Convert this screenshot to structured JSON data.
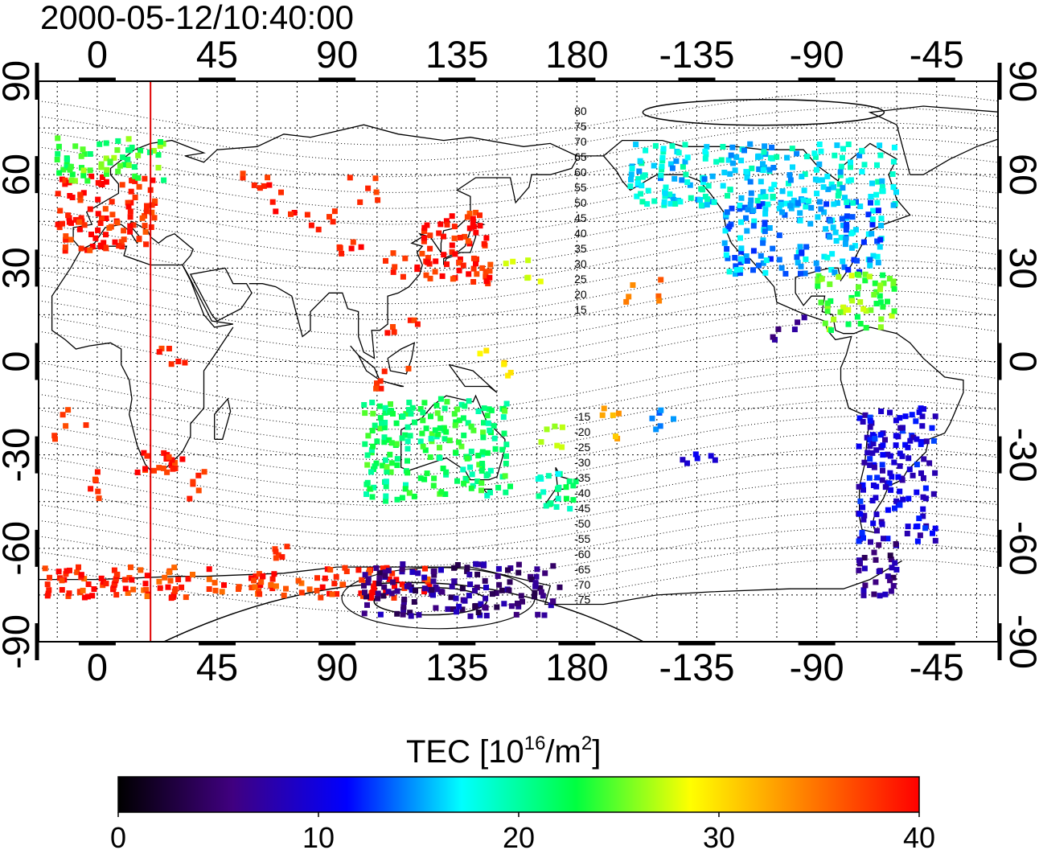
{
  "title": "2000-05-12/10:40:00",
  "colorbar": {
    "label_prefix": "TEC  [10",
    "label_exp1": "16",
    "label_mid": "/m",
    "label_exp2": "2",
    "label_suffix": "]",
    "ticks": [
      "0",
      "10",
      "20",
      "30",
      "40"
    ],
    "range": [
      0,
      40
    ],
    "colormap": "jet-like",
    "stops": [
      "#000000",
      "#400080",
      "#0000ff",
      "#00ffff",
      "#00ff40",
      "#ffff00",
      "#ff8000",
      "#ff0000"
    ]
  },
  "map": {
    "projection": "equirectangular",
    "lon_range": [
      -22,
      338
    ],
    "lat_range": [
      -90,
      90
    ],
    "lon_ticks": [
      0,
      45,
      90,
      135,
      180,
      225,
      270,
      315
    ],
    "lon_tick_labels": [
      "0",
      "45",
      "90",
      "135",
      "180",
      "-135",
      "-90",
      "-45"
    ],
    "lat_ticks": [
      90,
      60,
      30,
      0,
      -30,
      -60,
      -90
    ],
    "lat_tick_labels": [
      "90",
      "60",
      "30",
      "0",
      "-30",
      "-60",
      "-90"
    ],
    "grid": "dotted 15 deg",
    "terminator_lon": 20,
    "terminator_color": "#e00000",
    "mlat_labels": [
      "80",
      "75",
      "70",
      "65",
      "60",
      "55",
      "50",
      "45",
      "40",
      "35",
      "30",
      "25",
      "20",
      "15",
      "-15",
      "-20",
      "-25",
      "-30",
      "-35",
      "-40",
      "-45",
      "-50",
      "-55",
      "-60",
      "-65",
      "-70",
      "-75"
    ]
  },
  "chart_data": {
    "type": "heatmap",
    "title": "2000-05-12/10:40:00",
    "xlabel": "",
    "ylabel": "",
    "colorbar_label": "TEC  [10^16/m^2]",
    "zlim": [
      0,
      40
    ],
    "regions": [
      {
        "lon_min": -15,
        "lon_max": 22,
        "lat_min": 35,
        "lat_max": 60,
        "tec": 39
      },
      {
        "lon_min": -15,
        "lon_max": 25,
        "lat_min": 58,
        "lat_max": 72,
        "tec": 24
      },
      {
        "lon_min": 120,
        "lon_max": 148,
        "lat_min": 25,
        "lat_max": 48,
        "tec": 39
      },
      {
        "lon_min": 235,
        "lon_max": 295,
        "lat_min": 28,
        "lat_max": 52,
        "tec": 15
      },
      {
        "lon_min": 200,
        "lon_max": 300,
        "lat_min": 50,
        "lat_max": 70,
        "tec": 17
      },
      {
        "lon_min": 270,
        "lon_max": 300,
        "lat_min": 10,
        "lat_max": 28,
        "tec": 25
      },
      {
        "lon_min": 100,
        "lon_max": 155,
        "lat_min": -45,
        "lat_max": -12,
        "tec": 22
      },
      {
        "lon_min": 165,
        "lon_max": 180,
        "lat_min": -48,
        "lat_max": -34,
        "tec": 20
      },
      {
        "lon_min": 285,
        "lon_max": 315,
        "lat_min": -58,
        "lat_max": -15,
        "tec": 10
      },
      {
        "lon_min": 285,
        "lon_max": 300,
        "lat_min": -76,
        "lat_max": -58,
        "tec": 6
      },
      {
        "lon_min": 15,
        "lon_max": 32,
        "lat_min": -36,
        "lat_max": -28,
        "tec": 39
      },
      {
        "lon_min": -20,
        "lon_max": 125,
        "lat_min": -76,
        "lat_max": -66,
        "tec": 38
      },
      {
        "lon_min": 100,
        "lon_max": 175,
        "lat_min": -82,
        "lat_max": -65,
        "tec": 6
      }
    ]
  }
}
